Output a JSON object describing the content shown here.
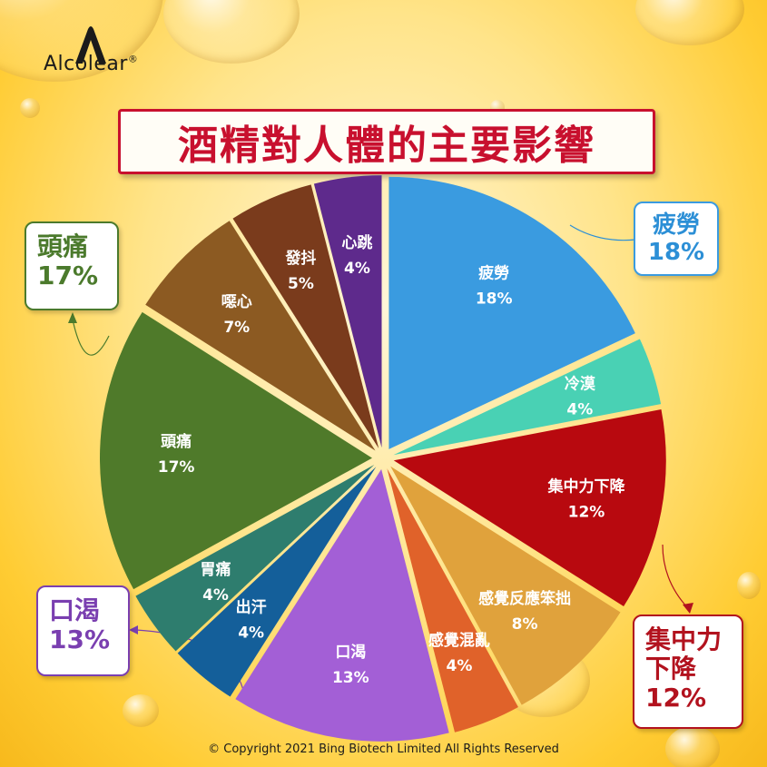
{
  "brand": {
    "name": "Alcolear",
    "registered": "®"
  },
  "title": "酒精對人體的主要影響",
  "copyright": "© Copyright 2021 Bing Biotech Limited All Rights Reserved",
  "callouts": {
    "fatigue": {
      "label": "疲勞",
      "value": "18%"
    },
    "headache": {
      "label": "頭痛",
      "value": "17%"
    },
    "thirst": {
      "label": "口渴",
      "value": "13%"
    },
    "focus": {
      "label_line1": "集中力",
      "label_line2": "下降",
      "value": "12%"
    }
  },
  "chart_data": {
    "type": "pie",
    "title": "酒精對人體的主要影響",
    "unit": "%",
    "slices": [
      {
        "label": "疲勞",
        "value": 18,
        "color": "#3a9be0"
      },
      {
        "label": "冷漠",
        "value": 4,
        "color": "#49d1b4"
      },
      {
        "label": "集中力下降",
        "value": 12,
        "color": "#b8090f"
      },
      {
        "label": "感覺反應笨拙",
        "value": 8,
        "color": "#e0a23c"
      },
      {
        "label": "感覺混亂",
        "value": 4,
        "color": "#e0622a"
      },
      {
        "label": "口渴",
        "value": 13,
        "color": "#a35fd6"
      },
      {
        "label": "出汗",
        "value": 4,
        "color": "#145f9a"
      },
      {
        "label": "胃痛",
        "value": 4,
        "color": "#2e7d6e"
      },
      {
        "label": "頭痛",
        "value": 17,
        "color": "#4f7a2a"
      },
      {
        "label": "噁心",
        "value": 7,
        "color": "#8c5a22"
      },
      {
        "label": "發抖",
        "value": 5,
        "color": "#7a3b1c"
      },
      {
        "label": "心跳",
        "value": 4,
        "color": "#5e2a8c"
      }
    ],
    "colors": {
      "accent_title": "#c8102e"
    }
  }
}
